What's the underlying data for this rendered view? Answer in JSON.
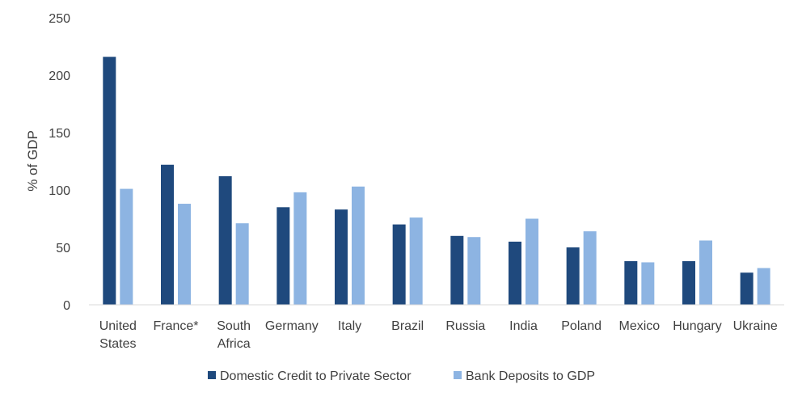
{
  "chart_data": {
    "type": "bar",
    "title": "",
    "xlabel": "",
    "ylabel": "% of GDP",
    "ylim": [
      0,
      250
    ],
    "yticks": [
      0,
      50,
      100,
      150,
      200,
      250
    ],
    "grid": false,
    "legend_position": "bottom",
    "categories": [
      [
        "United",
        "States"
      ],
      [
        "France*"
      ],
      [
        "South",
        "Africa"
      ],
      [
        "Germany"
      ],
      [
        "Italy"
      ],
      [
        "Brazil"
      ],
      [
        "Russia"
      ],
      [
        "India"
      ],
      [
        "Poland"
      ],
      [
        "Mexico"
      ],
      [
        "Hungary"
      ],
      [
        "Ukraine"
      ]
    ],
    "series": [
      {
        "name": "Domestic Credit to Private Sector",
        "color": "#1f497d",
        "values": [
          216,
          122,
          112,
          85,
          83,
          70,
          60,
          55,
          50,
          38,
          38,
          28
        ]
      },
      {
        "name": "Bank Deposits to GDP",
        "color": "#8db4e2",
        "values": [
          101,
          88,
          71,
          98,
          103,
          76,
          59,
          75,
          64,
          37,
          56,
          32
        ]
      }
    ]
  }
}
